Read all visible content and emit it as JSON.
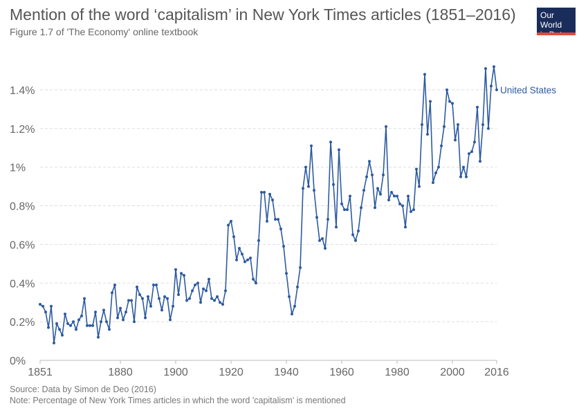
{
  "header": {
    "title": "Mention of the word ‘capitalism’ in New York Times articles (1851–2016)",
    "subtitle": "Figure 1.7 of 'The Economy' online textbook"
  },
  "logo": {
    "line1": "Our World",
    "line2": "in Data"
  },
  "footer": {
    "source": "Source: Data by Simon de Deo (2016)",
    "note": "Note: Percentage of New York Times articles in which the word 'capitalism' is mentioned"
  },
  "colors": {
    "line": "#2d5aa0",
    "grid": "#dddddd",
    "logo_bg": "#1a2d5a",
    "logo_accent": "#e5483d"
  },
  "chart_data": {
    "type": "line",
    "title": "Mention of the word ‘capitalism’ in New York Times articles (1851–2016)",
    "xlabel": "",
    "ylabel": "",
    "xlim": [
      1851,
      2016
    ],
    "ylim": [
      0,
      1.55
    ],
    "x_ticks": [
      1851,
      1880,
      1900,
      1920,
      1940,
      1960,
      1980,
      2000,
      2016
    ],
    "y_ticks": [
      {
        "value": 0,
        "label": "0%"
      },
      {
        "value": 0.2,
        "label": "0.2%"
      },
      {
        "value": 0.4,
        "label": "0.4%"
      },
      {
        "value": 0.6,
        "label": "0.6%"
      },
      {
        "value": 0.8,
        "label": "0.8%"
      },
      {
        "value": 1.0,
        "label": "1%"
      },
      {
        "value": 1.2,
        "label": "1.2%"
      },
      {
        "value": 1.4,
        "label": "1.4%"
      }
    ],
    "grid": "horizontal dashed",
    "series": [
      {
        "name": "United States",
        "x": [
          1851,
          1852,
          1853,
          1854,
          1855,
          1856,
          1857,
          1858,
          1859,
          1860,
          1861,
          1862,
          1863,
          1864,
          1865,
          1866,
          1867,
          1868,
          1869,
          1870,
          1871,
          1872,
          1873,
          1874,
          1875,
          1876,
          1877,
          1878,
          1879,
          1880,
          1881,
          1882,
          1883,
          1884,
          1885,
          1886,
          1887,
          1888,
          1889,
          1890,
          1891,
          1892,
          1893,
          1894,
          1895,
          1896,
          1897,
          1898,
          1899,
          1900,
          1901,
          1902,
          1903,
          1904,
          1905,
          1906,
          1907,
          1908,
          1909,
          1910,
          1911,
          1912,
          1913,
          1914,
          1915,
          1916,
          1917,
          1918,
          1919,
          1920,
          1921,
          1922,
          1923,
          1924,
          1925,
          1926,
          1927,
          1928,
          1929,
          1930,
          1931,
          1932,
          1933,
          1934,
          1935,
          1936,
          1937,
          1938,
          1939,
          1940,
          1941,
          1942,
          1943,
          1944,
          1945,
          1946,
          1947,
          1948,
          1949,
          1950,
          1951,
          1952,
          1953,
          1954,
          1955,
          1956,
          1957,
          1958,
          1959,
          1960,
          1961,
          1962,
          1963,
          1964,
          1965,
          1966,
          1967,
          1968,
          1969,
          1970,
          1971,
          1972,
          1973,
          1974,
          1975,
          1976,
          1977,
          1978,
          1979,
          1980,
          1981,
          1982,
          1983,
          1984,
          1985,
          1986,
          1987,
          1988,
          1989,
          1990,
          1991,
          1992,
          1993,
          1994,
          1995,
          1996,
          1997,
          1998,
          1999,
          2000,
          2001,
          2002,
          2003,
          2004,
          2005,
          2006,
          2007,
          2008,
          2009,
          2010,
          2011,
          2012,
          2013,
          2014,
          2015,
          2016
        ],
        "y": [
          0.29,
          0.28,
          0.25,
          0.17,
          0.28,
          0.09,
          0.19,
          0.16,
          0.13,
          0.24,
          0.19,
          0.18,
          0.2,
          0.16,
          0.21,
          0.23,
          0.32,
          0.18,
          0.18,
          0.18,
          0.25,
          0.12,
          0.2,
          0.26,
          0.2,
          0.16,
          0.35,
          0.39,
          0.22,
          0.27,
          0.21,
          0.25,
          0.31,
          0.31,
          0.2,
          0.38,
          0.34,
          0.32,
          0.22,
          0.33,
          0.28,
          0.39,
          0.39,
          0.32,
          0.26,
          0.33,
          0.32,
          0.21,
          0.28,
          0.47,
          0.34,
          0.45,
          0.44,
          0.31,
          0.32,
          0.36,
          0.39,
          0.4,
          0.3,
          0.37,
          0.36,
          0.42,
          0.32,
          0.31,
          0.33,
          0.3,
          0.29,
          0.36,
          0.7,
          0.72,
          0.64,
          0.52,
          0.58,
          0.55,
          0.51,
          0.52,
          0.53,
          0.42,
          0.4,
          0.62,
          0.87,
          0.87,
          0.72,
          0.86,
          0.83,
          0.73,
          0.73,
          0.68,
          0.59,
          0.45,
          0.33,
          0.24,
          0.28,
          0.38,
          0.48,
          0.89,
          1.0,
          0.9,
          1.11,
          0.88,
          0.74,
          0.62,
          0.63,
          0.58,
          0.73,
          1.13,
          0.91,
          0.69,
          1.09,
          0.81,
          0.78,
          0.78,
          0.85,
          0.65,
          0.62,
          0.67,
          0.79,
          0.88,
          0.95,
          1.03,
          0.96,
          0.79,
          0.89,
          0.86,
          0.96,
          1.21,
          0.83,
          0.87,
          0.85,
          0.85,
          0.81,
          0.8,
          0.69,
          0.85,
          0.77,
          0.78,
          0.99,
          0.9,
          1.22,
          1.48,
          1.17,
          1.34,
          0.92,
          0.97,
          1.0,
          1.11,
          1.21,
          1.4,
          1.34,
          1.33,
          1.14,
          1.22,
          0.95,
          1.0,
          0.95,
          1.07,
          1.08,
          1.13,
          1.31,
          1.03,
          1.22,
          1.51,
          1.2,
          1.42,
          1.52,
          1.4
        ]
      }
    ]
  }
}
